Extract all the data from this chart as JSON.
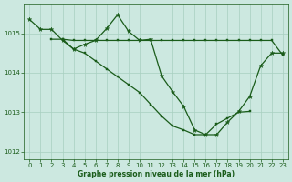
{
  "bg_color": "#cce8e0",
  "grid_color": "#a8cfc0",
  "line_color": "#1a5c1a",
  "xlabel": "Graphe pression niveau de la mer (hPa)",
  "xlim": [
    -0.5,
    23.5
  ],
  "ylim": [
    1011.8,
    1015.75
  ],
  "yticks": [
    1012,
    1013,
    1014,
    1015
  ],
  "xticks": [
    0,
    1,
    2,
    3,
    4,
    5,
    6,
    7,
    8,
    9,
    10,
    11,
    12,
    13,
    14,
    15,
    16,
    17,
    18,
    19,
    20,
    21,
    22,
    23
  ],
  "line1_x": [
    0,
    1,
    2,
    3,
    4,
    5,
    6,
    7,
    8,
    9,
    10,
    11,
    12,
    13,
    14,
    15,
    16,
    17,
    18,
    19,
    20,
    21,
    22,
    23
  ],
  "line1_y": [
    1015.35,
    1015.1,
    1015.1,
    1014.82,
    1014.6,
    1014.72,
    1014.82,
    1015.12,
    1015.47,
    1015.05,
    1014.82,
    1014.85,
    1013.92,
    1013.52,
    1013.15,
    1012.55,
    1012.43,
    1012.43,
    1012.75,
    1013.02,
    1013.4,
    1014.18,
    1014.5,
    1014.5
  ],
  "line2_x": [
    2,
    3,
    4,
    5,
    6,
    7,
    8,
    9,
    10,
    11,
    12,
    13,
    14,
    15,
    16,
    17,
    18,
    19,
    20,
    21,
    22,
    23
  ],
  "line2_y": [
    1014.85,
    1014.85,
    1014.82,
    1014.82,
    1014.82,
    1014.82,
    1014.82,
    1014.82,
    1014.82,
    1014.82,
    1014.82,
    1014.82,
    1014.82,
    1014.82,
    1014.82,
    1014.82,
    1014.82,
    1014.82,
    1014.82,
    1014.82,
    1014.82,
    1014.45
  ],
  "line3_x": [
    3,
    4,
    5,
    6,
    7,
    8,
    9,
    10,
    11,
    12,
    13,
    14,
    15,
    16,
    17,
    18,
    19,
    20
  ],
  "line3_y": [
    1014.85,
    1014.6,
    1014.5,
    1014.3,
    1014.1,
    1013.9,
    1013.7,
    1013.5,
    1013.2,
    1012.9,
    1012.65,
    1012.55,
    1012.43,
    1012.43,
    1012.7,
    1012.85,
    1013.0,
    1013.02
  ]
}
